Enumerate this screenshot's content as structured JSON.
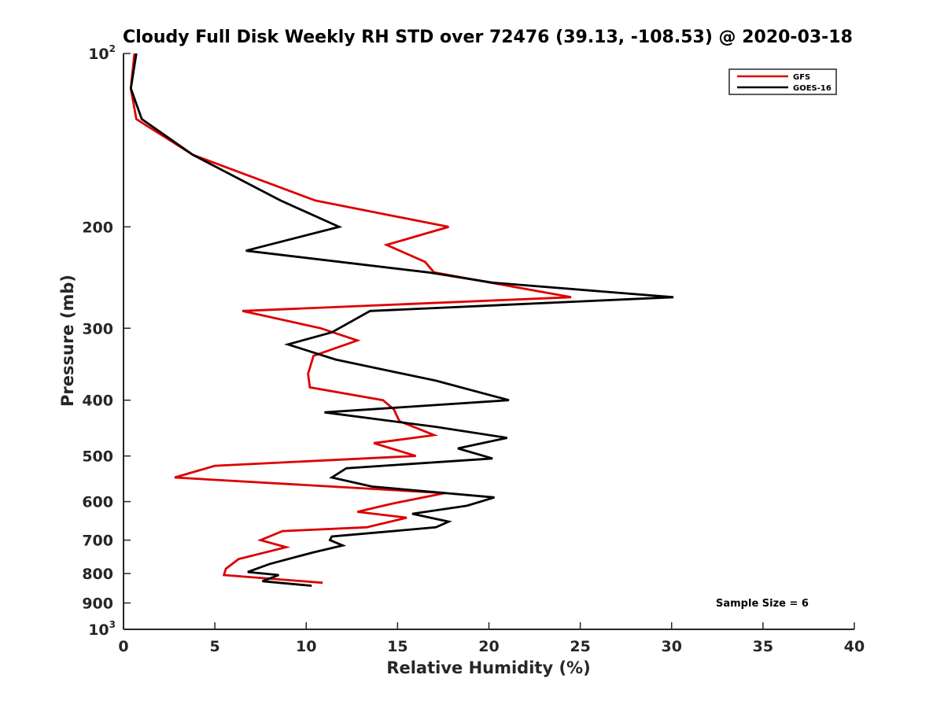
{
  "chart_data": {
    "type": "line",
    "title": "Cloudy Full Disk Weekly RH STD over 72476 (39.13, -108.53) @ 2020-03-18",
    "xlabel": "Relative Humidity (%)",
    "ylabel": "Pressure (mb)",
    "xlim": [
      0,
      40
    ],
    "ylim": [
      100,
      1000
    ],
    "y_scale": "log",
    "y_reversed": true,
    "grid": false,
    "legend_position": "top-right",
    "x_ticks": [
      "0",
      "5",
      "10",
      "15",
      "20",
      "25",
      "30",
      "35",
      "40"
    ],
    "y_ticks": [
      {
        "value": 100,
        "base": "10",
        "exp": "2"
      },
      {
        "value": 200,
        "label": "200"
      },
      {
        "value": 300,
        "label": "300"
      },
      {
        "value": 400,
        "label": "400"
      },
      {
        "value": 500,
        "label": "500"
      },
      {
        "value": 600,
        "label": "600"
      },
      {
        "value": 700,
        "label": "700"
      },
      {
        "value": 800,
        "label": "800"
      },
      {
        "value": 900,
        "label": "900"
      },
      {
        "value": 1000,
        "base": "10",
        "exp": "3"
      }
    ],
    "series": [
      {
        "name": "GFS",
        "color": "#dd0000",
        "points": [
          [
            0.6,
            100
          ],
          [
            0.4,
            115
          ],
          [
            0.7,
            130
          ],
          [
            3.8,
            150
          ],
          [
            10.5,
            180
          ],
          [
            17.8,
            200
          ],
          [
            14.4,
            215
          ],
          [
            16.5,
            230
          ],
          [
            17.0,
            240
          ],
          [
            24.5,
            265
          ],
          [
            6.5,
            280
          ],
          [
            10.8,
            300
          ],
          [
            12.8,
            315
          ],
          [
            10.4,
            335
          ],
          [
            10.1,
            360
          ],
          [
            10.2,
            380
          ],
          [
            14.2,
            400
          ],
          [
            14.8,
            415
          ],
          [
            15.1,
            435
          ],
          [
            17.0,
            460
          ],
          [
            13.7,
            475
          ],
          [
            16.0,
            500
          ],
          [
            5.0,
            520
          ],
          [
            2.8,
            545
          ],
          [
            17.6,
            580
          ],
          [
            14.7,
            605
          ],
          [
            12.8,
            625
          ],
          [
            15.5,
            640
          ],
          [
            13.3,
            665
          ],
          [
            8.7,
            675
          ],
          [
            7.5,
            700
          ],
          [
            8.9,
            720
          ],
          [
            6.3,
            755
          ],
          [
            5.6,
            785
          ],
          [
            5.5,
            805
          ],
          [
            10.9,
            830
          ]
        ]
      },
      {
        "name": "GOES-16",
        "color": "#000000",
        "points": [
          [
            0.7,
            100
          ],
          [
            0.4,
            115
          ],
          [
            1.0,
            130
          ],
          [
            3.8,
            150
          ],
          [
            8.6,
            180
          ],
          [
            11.8,
            200
          ],
          [
            6.7,
            220
          ],
          [
            16.7,
            240
          ],
          [
            20.2,
            250
          ],
          [
            30.1,
            265
          ],
          [
            13.5,
            280
          ],
          [
            11.4,
            305
          ],
          [
            9.0,
            320
          ],
          [
            11.6,
            340
          ],
          [
            17.1,
            370
          ],
          [
            21.1,
            400
          ],
          [
            11.0,
            420
          ],
          [
            17.1,
            445
          ],
          [
            21.0,
            465
          ],
          [
            18.3,
            485
          ],
          [
            20.2,
            505
          ],
          [
            12.2,
            525
          ],
          [
            11.4,
            545
          ],
          [
            13.6,
            565
          ],
          [
            20.3,
            590
          ],
          [
            18.8,
            610
          ],
          [
            15.8,
            630
          ],
          [
            17.8,
            650
          ],
          [
            17.1,
            665
          ],
          [
            11.4,
            690
          ],
          [
            11.3,
            700
          ],
          [
            12.0,
            715
          ],
          [
            10.4,
            735
          ],
          [
            8.0,
            770
          ],
          [
            6.8,
            795
          ],
          [
            8.5,
            805
          ],
          [
            7.6,
            825
          ],
          [
            10.3,
            840
          ]
        ]
      }
    ],
    "annotations": [
      "Sample Size = 6"
    ]
  }
}
